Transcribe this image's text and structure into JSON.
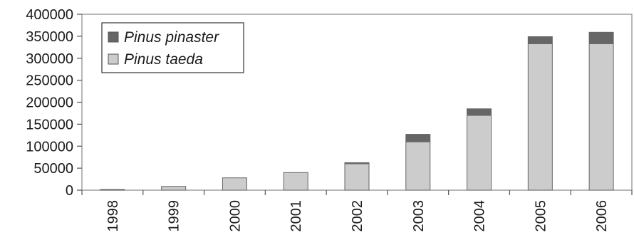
{
  "chart_data": {
    "type": "bar",
    "stacked": true,
    "categories": [
      "1998",
      "1999",
      "2000",
      "2001",
      "2002",
      "2003",
      "2004",
      "2005",
      "2006"
    ],
    "series": [
      {
        "name": "Pinus taeda",
        "color": "#cccccc",
        "values": [
          1500,
          8500,
          28000,
          40000,
          60000,
          110000,
          170000,
          333000,
          333000
        ]
      },
      {
        "name": "Pinus pinaster",
        "color": "#666666",
        "values": [
          0,
          0,
          0,
          0,
          2500,
          17000,
          15000,
          16000,
          26000
        ]
      }
    ],
    "y_ticks": [
      "0",
      "50000",
      "100000",
      "150000",
      "200000",
      "250000",
      "300000",
      "350000",
      "400000"
    ],
    "ylim": [
      0,
      400000
    ],
    "grid": false,
    "legend_position": "top-left",
    "legend_order": [
      "Pinus pinaster",
      "Pinus taeda"
    ],
    "x_label_rotation": "vertical"
  }
}
